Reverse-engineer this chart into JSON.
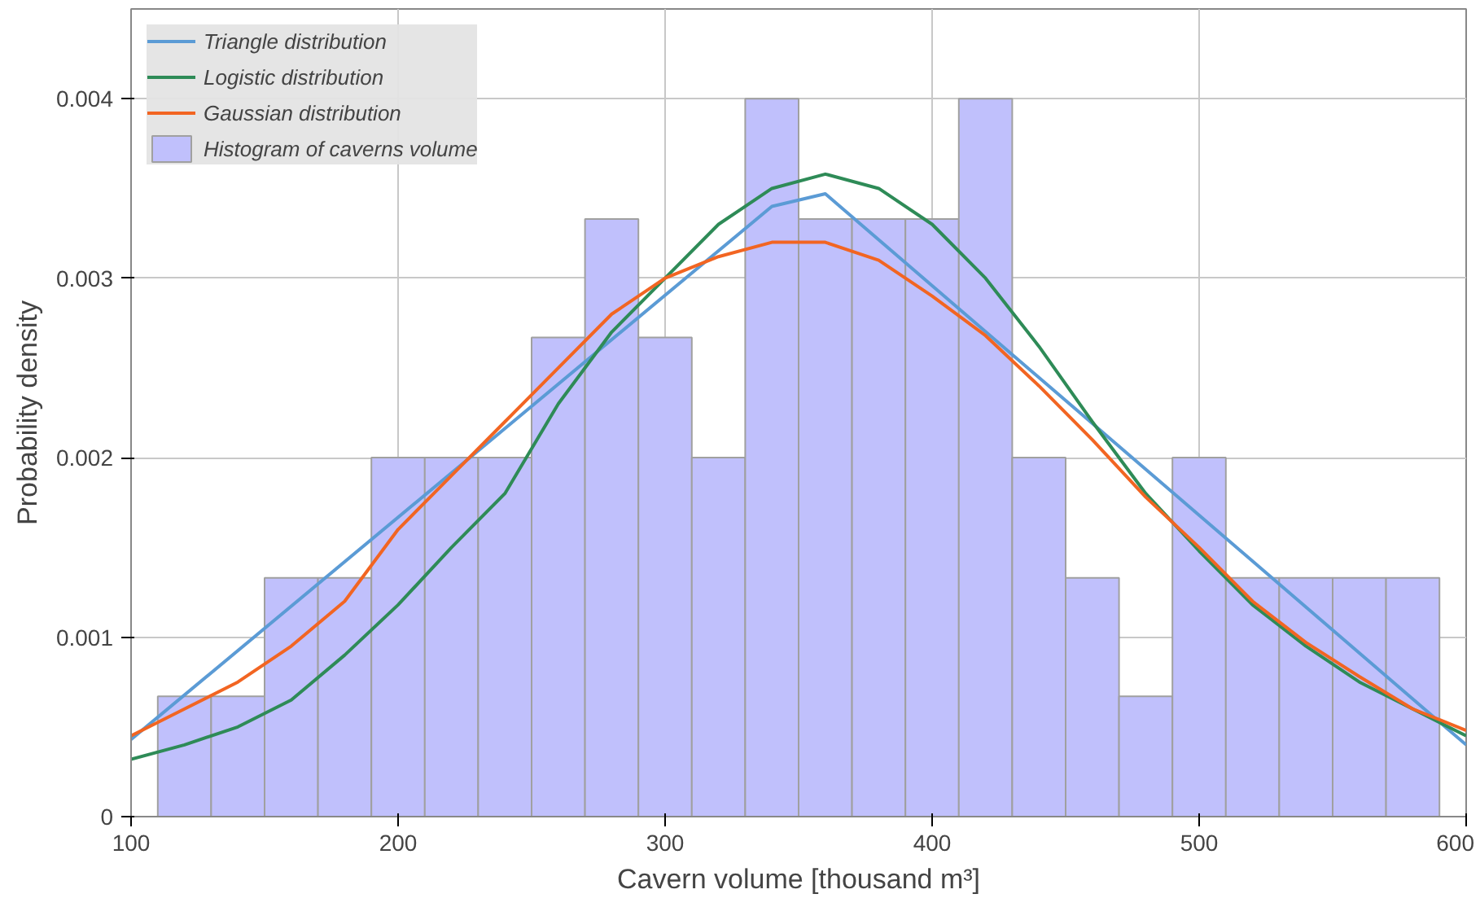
{
  "chart_data": {
    "type": "histogram",
    "xlabel": "Cavern volume [thousand m³]",
    "ylabel": "Probability density",
    "xlim": [
      100,
      600
    ],
    "ylim": [
      0,
      0.0045
    ],
    "xticks": [
      100,
      200,
      300,
      400,
      500,
      600
    ],
    "yticks": [
      {
        "value": 0,
        "label": "0"
      },
      {
        "value": 0.001,
        "label": "0.001"
      },
      {
        "value": 0.002,
        "label": "0.002"
      },
      {
        "value": 0.003,
        "label": "0.003"
      },
      {
        "value": 0.004,
        "label": "0.004"
      }
    ],
    "grid": true,
    "legend": "top left",
    "bins": [
      110,
      130,
      150,
      170,
      190,
      210,
      230,
      250,
      270,
      290,
      310,
      330,
      350,
      370,
      390,
      410,
      430,
      450,
      470,
      490,
      510,
      530,
      550,
      570,
      590
    ],
    "series": [
      {
        "type": "line",
        "name": "Triangle distribution",
        "color": "#5b9bd5",
        "x": [
          100,
          340,
          360,
          600
        ],
        "values": [
          0.00043,
          0.0034,
          0.00347,
          0.0004
        ]
      },
      {
        "type": "line",
        "name": "Logistic distribution",
        "color": "#2e8b57",
        "x": [
          100,
          120,
          140,
          160,
          180,
          200,
          220,
          240,
          260,
          280,
          300,
          320,
          340,
          360,
          380,
          400,
          420,
          440,
          460,
          480,
          500,
          520,
          540,
          560,
          580,
          600
        ],
        "values": [
          0.00032,
          0.0004,
          0.0005,
          0.00065,
          0.0009,
          0.00118,
          0.0015,
          0.0018,
          0.0023,
          0.0027,
          0.003,
          0.0033,
          0.0035,
          0.00358,
          0.0035,
          0.0033,
          0.003,
          0.00262,
          0.0022,
          0.0018,
          0.00148,
          0.00118,
          0.00095,
          0.00075,
          0.0006,
          0.00045
        ]
      },
      {
        "type": "line",
        "name": "Gaussian distribution",
        "color": "#f26522",
        "x": [
          100,
          120,
          140,
          160,
          180,
          200,
          220,
          240,
          260,
          280,
          300,
          320,
          340,
          360,
          380,
          400,
          420,
          440,
          460,
          480,
          500,
          520,
          540,
          560,
          580,
          600
        ],
        "values": [
          0.00045,
          0.0006,
          0.00075,
          0.00095,
          0.0012,
          0.0016,
          0.0019,
          0.0022,
          0.0025,
          0.0028,
          0.003,
          0.00312,
          0.0032,
          0.0032,
          0.0031,
          0.0029,
          0.00268,
          0.0024,
          0.0021,
          0.00178,
          0.0015,
          0.0012,
          0.00097,
          0.00078,
          0.0006,
          0.00048
        ]
      },
      {
        "name": "Histogram of caverns volume",
        "color": "#c0c0fc",
        "values": [
          0.00067,
          0.00067,
          0.00133,
          0.00133,
          0.002,
          0.002,
          0.002,
          0.00267,
          0.00333,
          0.00267,
          0.002,
          0.004,
          0.00333,
          0.00333,
          0.00333,
          0.004,
          0.002,
          0.00133,
          0.00067,
          0.002,
          0.00133,
          0.00133,
          0.00133,
          0.00133
        ]
      }
    ]
  }
}
